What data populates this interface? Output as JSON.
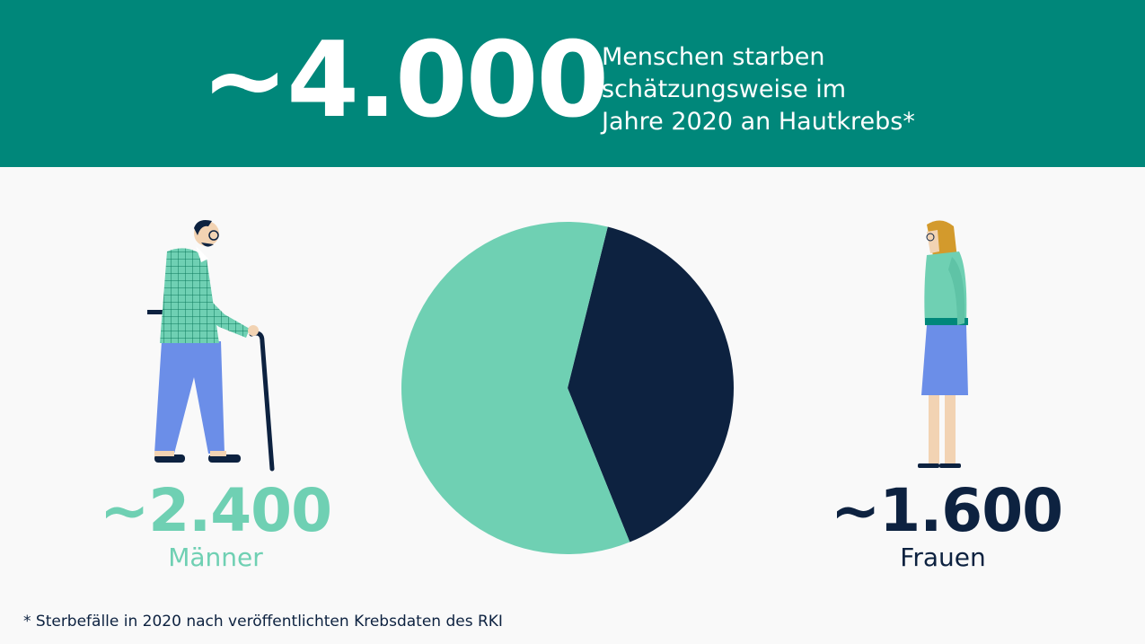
{
  "header": {
    "total": "~4.000",
    "lines": [
      "Menschen starben",
      "schätzungsweise im",
      "Jahre 2020 an Hautkrebs*"
    ]
  },
  "chart_data": {
    "type": "pie",
    "title": "",
    "slices": [
      {
        "label": "Männer",
        "value": 2400,
        "display": "~2.400",
        "color": "#6fd0b3"
      },
      {
        "label": "Frauen",
        "value": 1600,
        "display": "~1.600",
        "color": "#0d2240"
      }
    ]
  },
  "stats": {
    "men": {
      "value": "~2.400",
      "label": "Männer"
    },
    "women": {
      "value": "~1.600",
      "label": "Frauen"
    }
  },
  "footnote": "* Sterbefälle in 2020 nach veröffentlichten Krebsdaten des RKI",
  "colors": {
    "header_bg": "#00877a",
    "men": "#6fd0b3",
    "women": "#0d2240",
    "page_bg": "#f9f9f9"
  },
  "icons": [
    "elderly-man-with-cane-icon",
    "woman-standing-icon"
  ]
}
